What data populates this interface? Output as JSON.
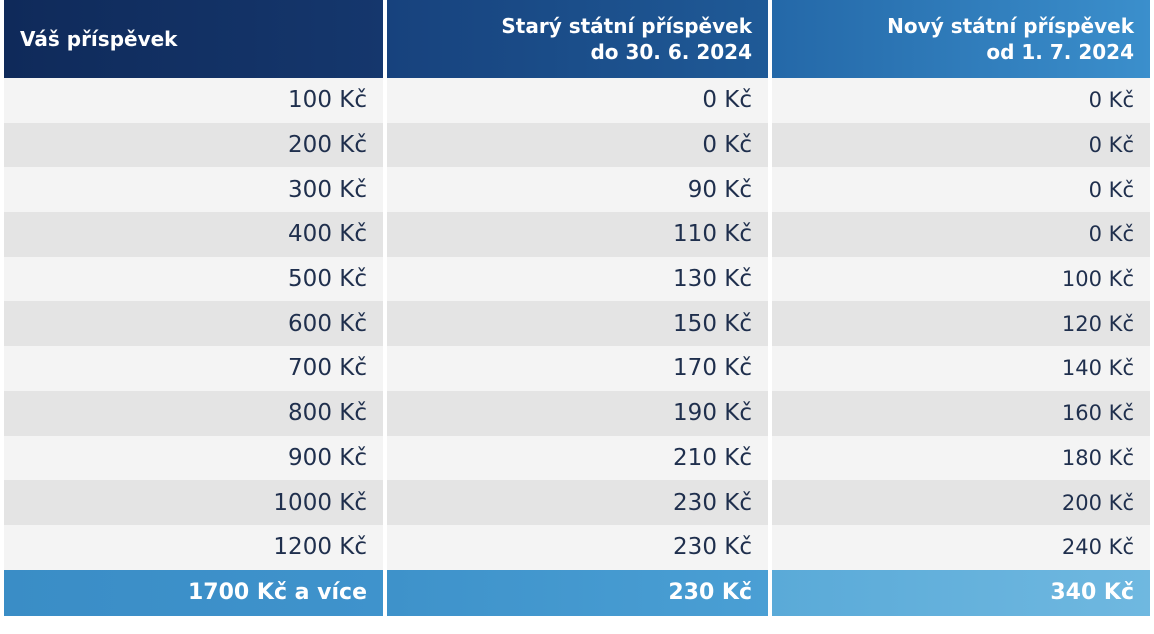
{
  "header": {
    "col1": "Váš příspěvek",
    "col2_line1": "Starý státní příspěvek",
    "col2_line2": "do 30. 6. 2024",
    "col3_line1": "Nový státní příspěvek",
    "col3_line2": "od 1. 7. 2024"
  },
  "rows": [
    {
      "contribution": "100 Kč",
      "old": "0 Kč",
      "new": "0 Kč"
    },
    {
      "contribution": "200 Kč",
      "old": "0 Kč",
      "new": "0 Kč"
    },
    {
      "contribution": "300 Kč",
      "old": "90 Kč",
      "new": "0 Kč"
    },
    {
      "contribution": "400 Kč",
      "old": "110 Kč",
      "new": "0 Kč"
    },
    {
      "contribution": "500 Kč",
      "old": "130 Kč",
      "new": "100 Kč"
    },
    {
      "contribution": "600 Kč",
      "old": "150 Kč",
      "new": "120 Kč"
    },
    {
      "contribution": "700 Kč",
      "old": "170 Kč",
      "new": "140 Kč"
    },
    {
      "contribution": "800 Kč",
      "old": "190 Kč",
      "new": "160 Kč"
    },
    {
      "contribution": "900 Kč",
      "old": "210 Kč",
      "new": "180 Kč"
    },
    {
      "contribution": "1000 Kč",
      "old": "230 Kč",
      "new": "200 Kč"
    },
    {
      "contribution": "1200 Kč",
      "old": "230 Kč",
      "new": "240 Kč"
    }
  ],
  "total": {
    "contribution": "1700 Kč a více",
    "old": "230 Kč",
    "new": "340 Kč"
  },
  "colors": {
    "header_dark": "#0f2a5a",
    "header_mid": "#1f5a97",
    "header_light": "#3b8fcc",
    "row_light": "#f4f4f4",
    "row_dark": "#e4e4e4",
    "total_row": "#3f93cc",
    "text": "#1f2f4d"
  }
}
